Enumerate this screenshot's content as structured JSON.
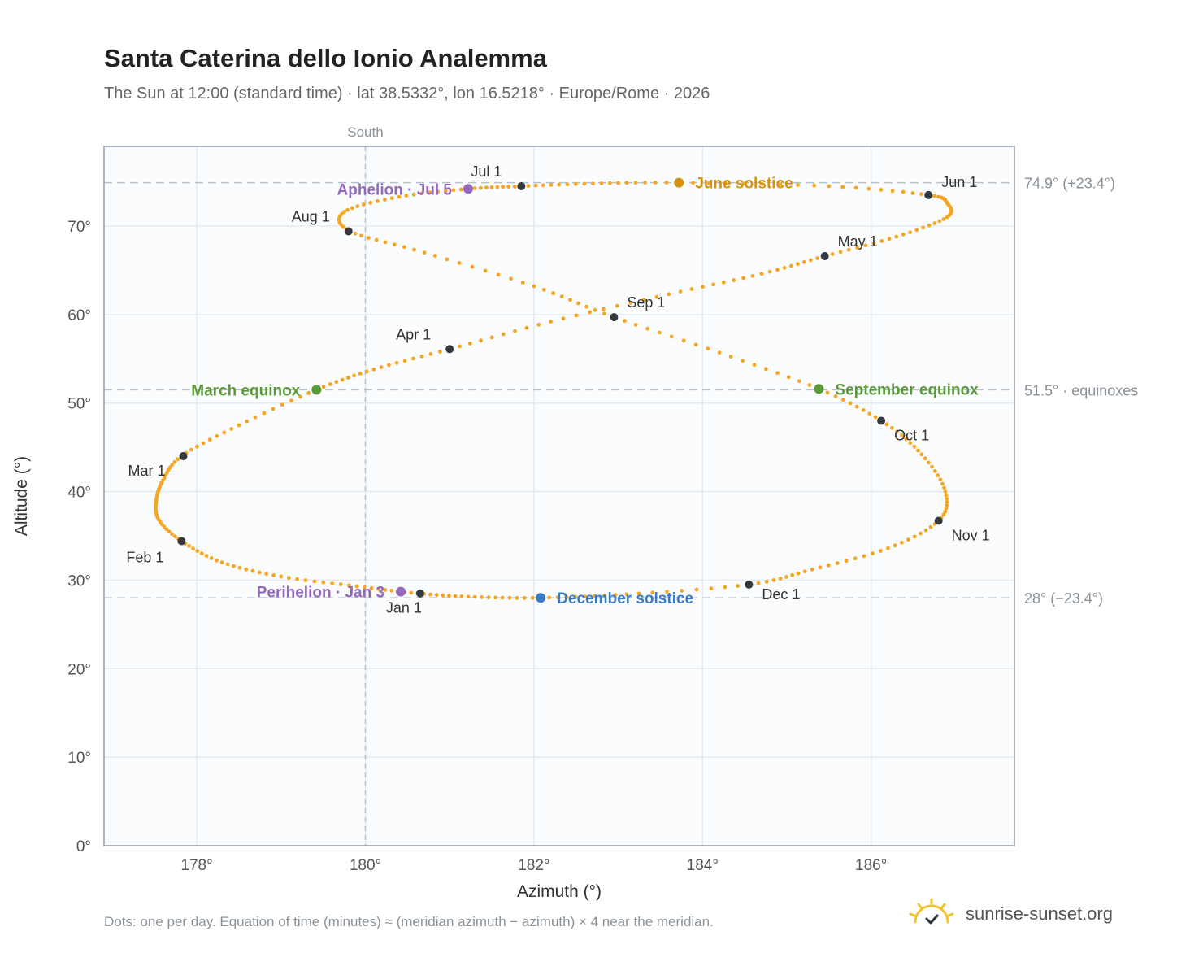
{
  "title": "Santa Caterina dello Ionio Analemma",
  "subtitle": "The Sun at 12:00 (standard time) · lat 38.5332°, lon 16.5218° · Europe/Rome · 2026",
  "footnote": "Dots: one per day. Equation of time (minutes) ≈ (meridian azimuth − azimuth) × 4 near the meridian.",
  "brand": {
    "name": "sunrise-sunset.org",
    "icon": "sun-logo-icon"
  },
  "colors": {
    "path": "#f5a623",
    "month": "#343a40",
    "equinox": "#5a9a3a",
    "june": "#d4930e",
    "december": "#3a7bc8",
    "aphelion": "#9467bd",
    "grid": "#e6eaee",
    "refline": "#b8c2cc",
    "plotbg": "#fafcfd",
    "frame": "#9aa5b1"
  },
  "chart_data": {
    "type": "scatter",
    "title": "Santa Caterina dello Ionio Analemma",
    "xlabel": "Azimuth (°)",
    "ylabel": "Altitude (°)",
    "xlim": [
      176.9,
      187.7
    ],
    "ylim": [
      0,
      79
    ],
    "xticks": [
      178,
      180,
      182,
      184,
      186
    ],
    "xtick_labels": [
      "178°",
      "180°",
      "182°",
      "184°",
      "186°"
    ],
    "yticks": [
      0,
      10,
      20,
      30,
      40,
      50,
      60,
      70
    ],
    "ytick_labels": [
      "0°",
      "10°",
      "20°",
      "30°",
      "40°",
      "50°",
      "60°",
      "70°"
    ],
    "grid": true,
    "south_line": {
      "x": 180,
      "label": "South"
    },
    "ref_lines": [
      {
        "y": 74.9,
        "label": "74.9° (+23.4°)"
      },
      {
        "y": 51.5,
        "label": "51.5° · equinoxes"
      },
      {
        "y": 28.0,
        "label": "28° (−23.4°)"
      }
    ],
    "path_series": {
      "name": "",
      "description_points": "daily positions",
      "points": [
        [
          180.62,
          28.5
        ],
        [
          179.9,
          29.3
        ],
        [
          179.0,
          30.4
        ],
        [
          178.3,
          32.0
        ],
        [
          177.82,
          34.4
        ],
        [
          177.55,
          36.8
        ],
        [
          177.52,
          39.0
        ],
        [
          177.6,
          41.3
        ],
        [
          177.82,
          44.0
        ],
        [
          178.5,
          47.5
        ],
        [
          179.42,
          51.5
        ],
        [
          180.1,
          53.8
        ],
        [
          181.0,
          56.1
        ],
        [
          182.2,
          59.2
        ],
        [
          183.6,
          62.3
        ],
        [
          184.7,
          64.6
        ],
        [
          185.45,
          66.6
        ],
        [
          186.3,
          68.8
        ],
        [
          186.9,
          71.0
        ],
        [
          186.9,
          72.6
        ],
        [
          186.68,
          73.5
        ],
        [
          185.5,
          74.5
        ],
        [
          183.72,
          74.9
        ],
        [
          182.7,
          74.8
        ],
        [
          181.85,
          74.5
        ],
        [
          181.22,
          74.2
        ],
        [
          180.4,
          73.3
        ],
        [
          179.75,
          71.6
        ],
        [
          179.82,
          69.4
        ],
        [
          180.7,
          67.0
        ],
        [
          182.0,
          63.2
        ],
        [
          182.95,
          59.7
        ],
        [
          184.2,
          55.7
        ],
        [
          185.38,
          51.6
        ],
        [
          186.12,
          48.0
        ],
        [
          186.6,
          44.2
        ],
        [
          186.88,
          40.0
        ],
        [
          186.8,
          36.7
        ],
        [
          186.2,
          33.6
        ],
        [
          185.3,
          31.2
        ],
        [
          184.55,
          29.5
        ],
        [
          183.1,
          28.4
        ],
        [
          182.08,
          28.0
        ],
        [
          181.3,
          28.1
        ],
        [
          180.62,
          28.5
        ]
      ]
    },
    "month_markers": [
      {
        "label": "Jan 1",
        "x": 180.65,
        "y": 28.5
      },
      {
        "label": "Feb 1",
        "x": 177.82,
        "y": 34.4
      },
      {
        "label": "Mar 1",
        "x": 177.84,
        "y": 44.0
      },
      {
        "label": "Apr 1",
        "x": 181.0,
        "y": 56.1
      },
      {
        "label": "May 1",
        "x": 185.45,
        "y": 66.6
      },
      {
        "label": "Jun 1",
        "x": 186.68,
        "y": 73.5
      },
      {
        "label": "Jul 1",
        "x": 181.85,
        "y": 74.5
      },
      {
        "label": "Aug 1",
        "x": 179.8,
        "y": 69.4
      },
      {
        "label": "Sep 1",
        "x": 182.95,
        "y": 59.7
      },
      {
        "label": "Oct 1",
        "x": 186.12,
        "y": 48.0
      },
      {
        "label": "Nov 1",
        "x": 186.8,
        "y": 36.7
      },
      {
        "label": "Dec 1",
        "x": 184.55,
        "y": 29.5
      }
    ],
    "events": [
      {
        "label": "March equinox",
        "x": 179.42,
        "y": 51.5,
        "color": "#5a9a3a",
        "side": "left"
      },
      {
        "label": "September equinox",
        "x": 185.38,
        "y": 51.6,
        "color": "#5a9a3a",
        "side": "right"
      },
      {
        "label": "June solstice",
        "x": 183.72,
        "y": 74.9,
        "color": "#d4930e",
        "side": "right"
      },
      {
        "label": "December solstice",
        "x": 182.08,
        "y": 28.0,
        "color": "#3a7bc8",
        "side": "right"
      },
      {
        "label": "Aphelion · Jul 5",
        "x": 181.22,
        "y": 74.2,
        "color": "#9467bd",
        "side": "left"
      },
      {
        "label": "Perihelion · Jan 3",
        "x": 180.42,
        "y": 28.7,
        "color": "#9467bd",
        "side": "left"
      }
    ]
  }
}
